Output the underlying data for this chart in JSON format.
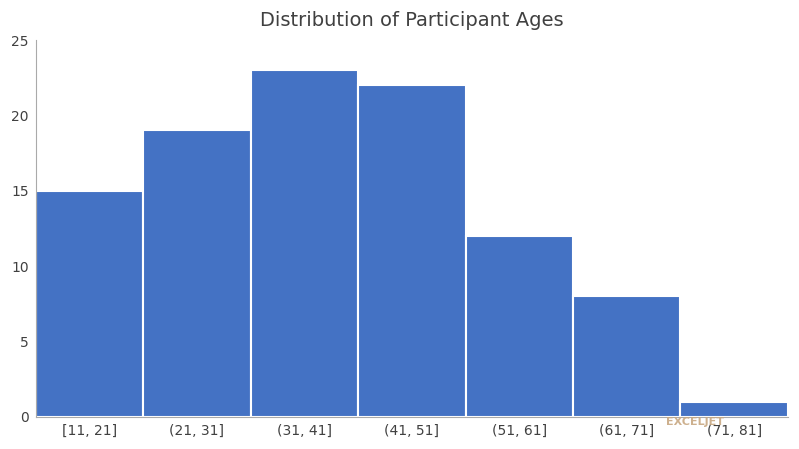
{
  "title": "Distribution of Participant Ages",
  "categories": [
    "[11, 21]",
    "(21, 31]",
    "(31, 41]",
    "(41, 51]",
    "(51, 61]",
    "(61, 71]",
    "(71, 81]"
  ],
  "values": [
    15,
    19,
    23,
    22,
    12,
    8,
    1
  ],
  "bar_color": "#4472C4",
  "bar_edgecolor": "#ffffff",
  "bar_linewidth": 1.5,
  "ylim": [
    0,
    25
  ],
  "yticks": [
    0,
    5,
    10,
    15,
    20,
    25
  ],
  "title_fontsize": 14,
  "tick_fontsize": 10,
  "background_color": "#ffffff",
  "watermark": "EXCELJET",
  "watermark_color": "#c8a882"
}
